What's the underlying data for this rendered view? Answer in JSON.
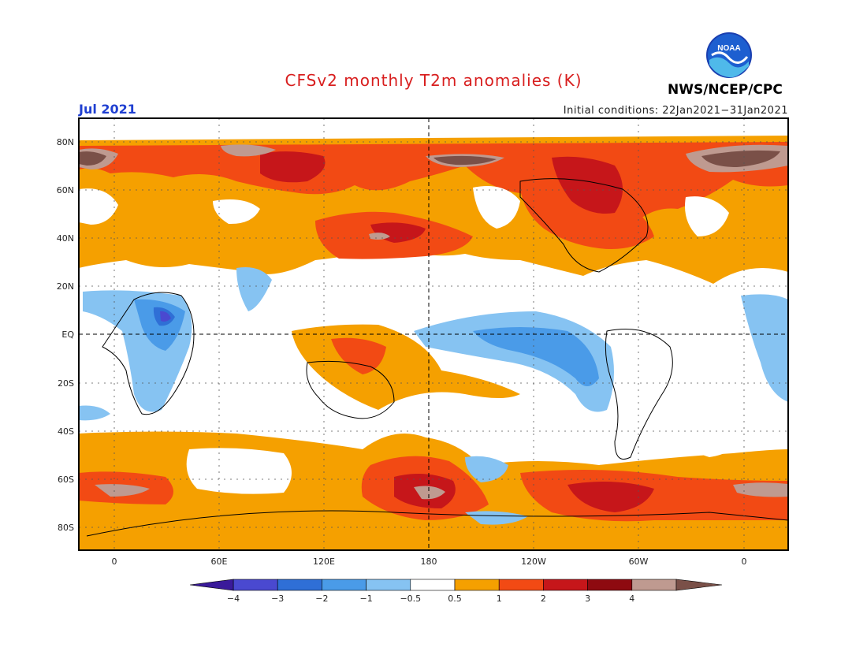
{
  "header": {
    "title": "CFSv2 monthly T2m anomalies (K)",
    "month": "Jul 2021",
    "initial_conditions": "Initial conditions: 22Jan2021−31Jan2021",
    "agency": "NWS/NCEP/CPC",
    "logo_text": "NOAA"
  },
  "map": {
    "lat_labels": [
      "80N",
      "60N",
      "40N",
      "20N",
      "EQ",
      "20S",
      "40S",
      "60S",
      "80S"
    ],
    "lon_labels": [
      "0",
      "60E",
      "120E",
      "180",
      "120W",
      "60W",
      "0"
    ],
    "colors": {
      "neg4": "#3a1a9a",
      "neg3": "#4a49d0",
      "neg2": "#2f6fd6",
      "neg1": "#4a9be8",
      "neg05": "#86c3f2",
      "neutral": "#ffffff",
      "pos05": "#f5a000",
      "pos1": "#f24a14",
      "pos2": "#c6161a",
      "pos3": "#8e0a10",
      "pos4": "#bf9a90",
      "pos5": "#7a5048"
    }
  },
  "colorbar": {
    "labels": [
      "−4",
      "−3",
      "−2",
      "−1",
      "−0.5",
      "0.5",
      "1",
      "2",
      "3",
      "4"
    ]
  }
}
